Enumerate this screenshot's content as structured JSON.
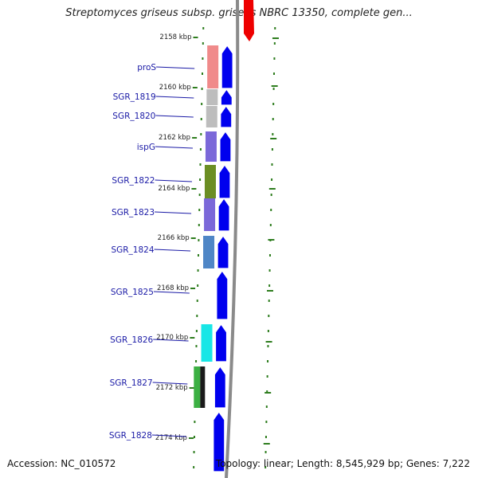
{
  "title": "Streptomyces griseus subsp. griseus NBRC 13350, complete gen...",
  "footer": {
    "accession": "Accession: NC_010572",
    "summary": "Topology: linear; Length: 8,545,929 bp; Genes: 7,222"
  },
  "colors": {
    "label": "#1a1aa6",
    "forward_gene": "#0000ee",
    "backbone": "#8a8a8a",
    "tick": "#2e7d1e",
    "reverse_gene": "#ee0000"
  },
  "kbp_ticks": [
    {
      "label": "2158 kbp"
    },
    {
      "label": "2160 kbp"
    },
    {
      "label": "2162 kbp"
    },
    {
      "label": "2164 kbp"
    },
    {
      "label": "2166 kbp"
    },
    {
      "label": "2168 kbp"
    },
    {
      "label": "2170 kbp"
    },
    {
      "label": "2172 kbp"
    },
    {
      "label": "2174 kbp"
    }
  ],
  "genes": [
    {
      "name": "proS",
      "color": "#f08a8a"
    },
    {
      "name": "SGR_1819",
      "color": "#bdbdbd"
    },
    {
      "name": "SGR_1820",
      "color": "#bdbdbd"
    },
    {
      "name": "ispG",
      "color": "#7b68d9"
    },
    {
      "name": "SGR_1822",
      "color": "#6b8e23"
    },
    {
      "name": "SGR_1823",
      "color": "#7b68d9"
    },
    {
      "name": "SGR_1824",
      "color": "#4f86c6"
    },
    {
      "name": "SGR_1825",
      "color": ""
    },
    {
      "name": "SGR_1826",
      "color": "#18e6e6"
    },
    {
      "name": "SGR_1827",
      "color": "#3cb043",
      "color2": "#1a1a1a"
    },
    {
      "name": "SGR_1828",
      "color": ""
    }
  ]
}
